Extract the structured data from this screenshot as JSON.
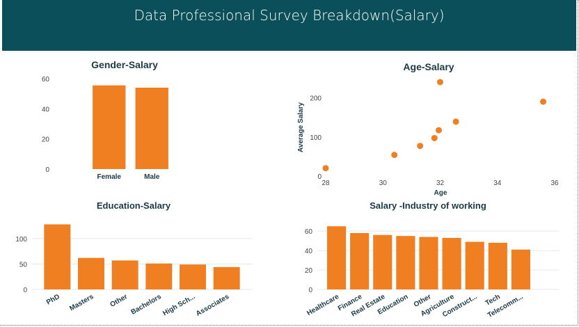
{
  "header": {
    "title": "Data Professional Survey Breakdown(Salary)"
  },
  "colors": {
    "header_bg": "#0b4f5a",
    "bar": "#f07f22",
    "title_text": "#1b3a44"
  },
  "chart_data": [
    {
      "id": "gender",
      "type": "bar",
      "title": "Gender-Salary",
      "categories": [
        "Female",
        "Male"
      ],
      "values": [
        55.5,
        54
      ],
      "ylim": [
        0,
        60
      ],
      "yticks": [
        0,
        20,
        40,
        60
      ],
      "grid": false
    },
    {
      "id": "age",
      "type": "scatter",
      "title": "Age-Salary",
      "xlabel": "Age",
      "ylabel": "Average Salary",
      "x": [
        28,
        30.4,
        31.3,
        31.8,
        31.95,
        32,
        32.55,
        35.6
      ],
      "y": [
        20,
        54,
        77,
        97,
        117,
        240,
        139,
        190
      ],
      "xlim": [
        28,
        36
      ],
      "ylim": [
        0,
        240
      ],
      "xticks": [
        28,
        30,
        32,
        34,
        36
      ],
      "yticks": [
        0,
        100,
        200
      ],
      "grid": false
    },
    {
      "id": "education",
      "type": "bar",
      "title": "Education-Salary",
      "categories": [
        "PhD",
        "Masters",
        "Other",
        "Bachelors",
        "High Sch...",
        "Associates"
      ],
      "values": [
        128,
        62,
        57,
        51,
        49,
        44
      ],
      "ylim": [
        0,
        130
      ],
      "yticks": [
        0,
        50,
        100
      ],
      "grid": true
    },
    {
      "id": "industry",
      "type": "bar",
      "title": "Salary -Industry of working",
      "categories": [
        "Healthcare",
        "Finance",
        "Real Estate",
        "Education",
        "Other",
        "Agriculture",
        "Construct...",
        "Tech",
        "Telecomm..."
      ],
      "values": [
        65,
        58,
        56,
        55,
        54,
        53,
        49,
        48,
        41
      ],
      "ylim": [
        0,
        68
      ],
      "yticks": [
        0,
        20,
        40,
        60
      ],
      "grid": true
    }
  ]
}
